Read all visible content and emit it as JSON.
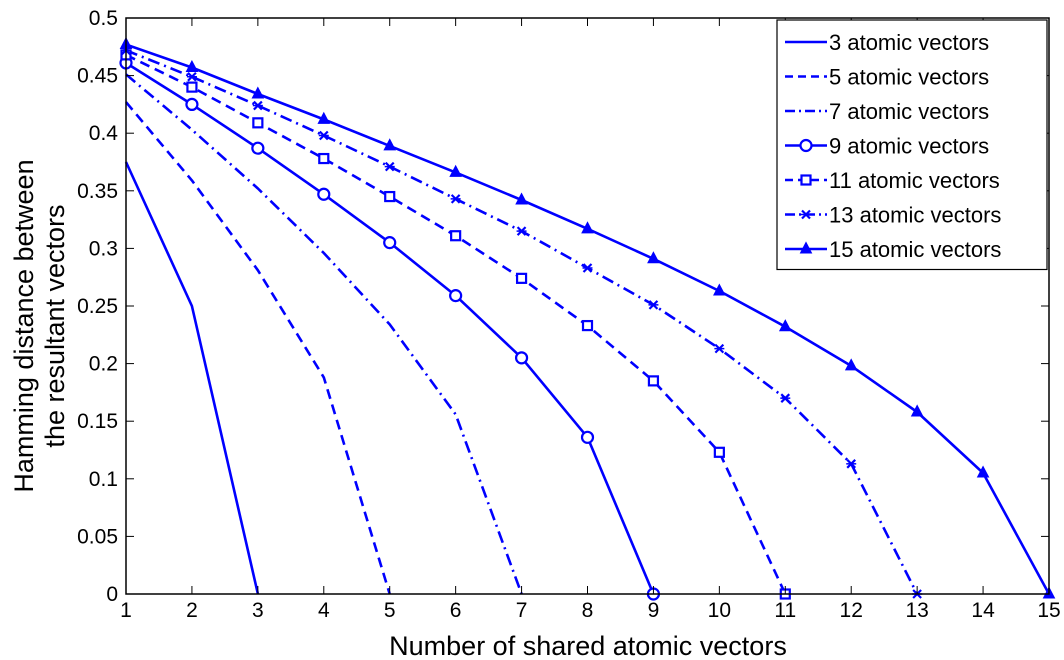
{
  "chart_data": {
    "type": "line",
    "title": "",
    "xlabel": "Number of shared atomic vectors",
    "ylabel_lines": [
      "Hamming distance between",
      "the resultant vectors"
    ],
    "xlim": [
      1,
      15
    ],
    "ylim": [
      0,
      0.5
    ],
    "xticks": [
      "1",
      "2",
      "3",
      "4",
      "5",
      "6",
      "7",
      "8",
      "9",
      "10",
      "11",
      "12",
      "13",
      "14",
      "15"
    ],
    "yticks": [
      "0",
      "0.05",
      "0.1",
      "0.15",
      "0.2",
      "0.25",
      "0.3",
      "0.35",
      "0.4",
      "0.45",
      "0.5"
    ],
    "grid": false,
    "legend_position": "top-right",
    "color": "#0000ff",
    "series": [
      {
        "name": "3 atomic vectors",
        "style": "solid",
        "marker": "none",
        "x": [
          1,
          2,
          3
        ],
        "y": [
          0.375,
          0.25,
          0
        ]
      },
      {
        "name": "5 atomic vectors",
        "style": "dashed",
        "marker": "none",
        "x": [
          1,
          2,
          3,
          4,
          5
        ],
        "y": [
          0.427,
          0.359,
          0.281,
          0.188,
          0
        ]
      },
      {
        "name": "7 atomic vectors",
        "style": "dashdot",
        "marker": "none",
        "x": [
          1,
          2,
          3,
          4,
          5,
          6,
          7
        ],
        "y": [
          0.451,
          0.403,
          0.352,
          0.296,
          0.234,
          0.156,
          0
        ]
      },
      {
        "name": "9 atomic vectors",
        "style": "solid",
        "marker": "circle",
        "x": [
          1,
          2,
          3,
          4,
          5,
          6,
          7,
          8,
          9
        ],
        "y": [
          0.461,
          0.425,
          0.387,
          0.347,
          0.305,
          0.259,
          0.205,
          0.136,
          0
        ]
      },
      {
        "name": "11 atomic vectors",
        "style": "dashed",
        "marker": "square",
        "x": [
          1,
          2,
          3,
          4,
          5,
          6,
          7,
          8,
          9,
          10,
          11
        ],
        "y": [
          0.468,
          0.44,
          0.409,
          0.378,
          0.345,
          0.311,
          0.274,
          0.233,
          0.185,
          0.123,
          0
        ]
      },
      {
        "name": "13 atomic vectors",
        "style": "dashdot",
        "marker": "x",
        "x": [
          1,
          2,
          3,
          4,
          5,
          6,
          7,
          8,
          9,
          10,
          11,
          12,
          13
        ],
        "y": [
          0.472,
          0.449,
          0.424,
          0.398,
          0.371,
          0.343,
          0.315,
          0.283,
          0.251,
          0.213,
          0.17,
          0.113,
          0
        ]
      },
      {
        "name": "15 atomic vectors",
        "style": "solid",
        "marker": "triangle",
        "x": [
          1,
          2,
          3,
          4,
          5,
          6,
          7,
          8,
          9,
          10,
          11,
          12,
          13,
          14,
          15
        ],
        "y": [
          0.477,
          0.457,
          0.434,
          0.412,
          0.389,
          0.366,
          0.342,
          0.317,
          0.291,
          0.263,
          0.232,
          0.198,
          0.158,
          0.105,
          0
        ]
      }
    ]
  }
}
